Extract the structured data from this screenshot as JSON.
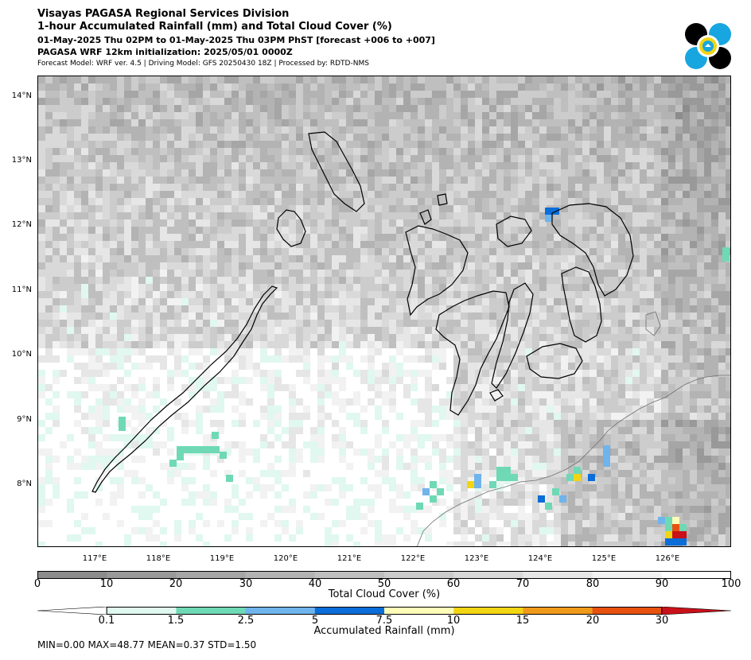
{
  "header": {
    "line1": "Visayas PAGASA Regional Services Division",
    "line2": "1-hour Accumulated Rainfall (mm) and Total Cloud Cover (%)",
    "line3": "01-May-2025 Thu 02PM to 01-May-2025 Thu 03PM PhST [forecast +006 to +007]",
    "line4": "PAGASA WRF 12km initialization: 2025/05/01 0000Z",
    "line5": "Forecast Model: WRF ver. 4.5 | Driving Model: GFS 20250430 18Z | Processed by: RDTD-NMS"
  },
  "map": {
    "lat_labels": [
      "14°N",
      "13°N",
      "12°N",
      "11°N",
      "10°N",
      "9°N",
      "8°N"
    ],
    "lon_labels": [
      "117°E",
      "118°E",
      "119°E",
      "120°E",
      "121°E",
      "122°E",
      "123°E",
      "124°E",
      "125°E",
      "126°E"
    ],
    "lon_range": [
      116.0,
      126.95
    ],
    "lat_range": [
      7.0,
      14.3
    ]
  },
  "cloud_colorbar": {
    "title": "Total Cloud Cover (%)",
    "ticks": [
      "0",
      "10",
      "20",
      "30",
      "40",
      "50",
      "60",
      "70",
      "80",
      "90",
      "100"
    ],
    "colors": [
      "#8c8c8c",
      "#999999",
      "#a6a6a6",
      "#b3b3b3",
      "#bfbfbf",
      "#cccccc",
      "#d9d9d9",
      "#e6e6e6",
      "#f2f2f2",
      "#ffffff"
    ]
  },
  "rain_colorbar": {
    "title": "Accumulated Rainfall (mm)",
    "ticks": [
      "0.1",
      "1.5",
      "2.5",
      "5",
      "7.5",
      "10",
      "15",
      "20",
      "30"
    ],
    "colors": [
      "#e0f8ef",
      "#6fd9b5",
      "#6fb4ec",
      "#0a6dd8",
      "#fdfdb8",
      "#f2d513",
      "#f09a1a",
      "#e8520f"
    ],
    "under_color": "#ffffff",
    "over_color": "#c9111a"
  },
  "stats": {
    "text": "MIN=0.00   MAX=48.77   MEAN=0.37   STD=1.50"
  }
}
